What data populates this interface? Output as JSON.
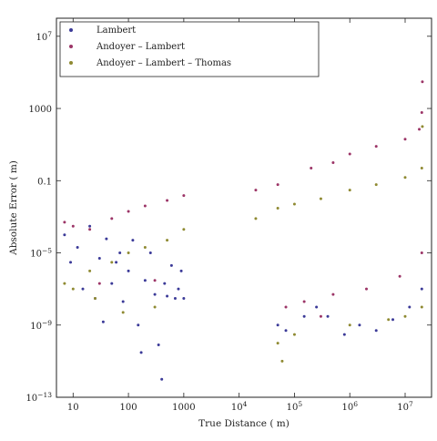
{
  "chart_data": {
    "type": "scatter",
    "title": "",
    "xlabel": "True Distance ( m)",
    "ylabel": "Absolute Error ( m)",
    "x_scale": "log",
    "y_scale": "log",
    "xlim": [
      5,
      30000000
    ],
    "ylim": [
      1e-13,
      100000000.0
    ],
    "grid": false,
    "legend_position": "top-left",
    "x_ticks": [
      {
        "value": 10,
        "label": "10"
      },
      {
        "value": 100,
        "label": "100"
      },
      {
        "value": 1000,
        "label": "1000"
      },
      {
        "value": 10000,
        "label": "10",
        "exp": "4"
      },
      {
        "value": 100000,
        "label": "10",
        "exp": "5"
      },
      {
        "value": 1000000,
        "label": "10",
        "exp": "6"
      },
      {
        "value": 10000000,
        "label": "10",
        "exp": "7"
      }
    ],
    "y_ticks": [
      {
        "value": 1e-13,
        "label": "10",
        "exp": "−13"
      },
      {
        "value": 1e-09,
        "label": "10",
        "exp": "−9"
      },
      {
        "value": 1e-05,
        "label": "10",
        "exp": "−5"
      },
      {
        "value": 0.1,
        "label": "0.1"
      },
      {
        "value": 1000,
        "label": "1000"
      },
      {
        "value": 10000000.0,
        "label": "10",
        "exp": "7"
      }
    ],
    "series": [
      {
        "name": "Lambert",
        "color": "#3b3a98",
        "points": [
          [
            7,
            0.0001
          ],
          [
            9,
            3e-06
          ],
          [
            12,
            2e-05
          ],
          [
            15,
            1e-07
          ],
          [
            20,
            0.0003
          ],
          [
            25,
            3e-08
          ],
          [
            30,
            5e-06
          ],
          [
            35,
            1.5e-09
          ],
          [
            40,
            6e-05
          ],
          [
            50,
            2e-07
          ],
          [
            60,
            3e-06
          ],
          [
            70,
            1e-05
          ],
          [
            80,
            2e-08
          ],
          [
            100,
            1e-06
          ],
          [
            120,
            5e-05
          ],
          [
            150,
            1e-09
          ],
          [
            170,
            3e-11
          ],
          [
            200,
            3e-07
          ],
          [
            250,
            1e-05
          ],
          [
            300,
            5e-08
          ],
          [
            350,
            8e-11
          ],
          [
            400,
            1e-12
          ],
          [
            450,
            2e-07
          ],
          [
            500,
            4e-08
          ],
          [
            600,
            2e-06
          ],
          [
            700,
            3e-08
          ],
          [
            800,
            1e-07
          ],
          [
            900,
            1e-06
          ],
          [
            1000,
            3e-08
          ],
          [
            50000,
            1e-09
          ],
          [
            70000,
            5e-10
          ],
          [
            150000,
            3e-09
          ],
          [
            250000,
            1e-08
          ],
          [
            400000,
            3e-09
          ],
          [
            800000,
            3e-10
          ],
          [
            1500000,
            1e-09
          ],
          [
            3000000,
            5e-10
          ],
          [
            6000000,
            2e-09
          ],
          [
            12000000,
            1e-08
          ],
          [
            20000000,
            1e-07
          ]
        ]
      },
      {
        "name": "Andoyer – Lambert",
        "color": "#9c3567",
        "points": [
          [
            7,
            0.0005
          ],
          [
            10,
            0.0003
          ],
          [
            20,
            0.0002
          ],
          [
            50,
            0.0008
          ],
          [
            100,
            0.002
          ],
          [
            200,
            0.004
          ],
          [
            500,
            0.008
          ],
          [
            1000,
            0.015
          ],
          [
            30,
            2e-07
          ],
          [
            300,
            3e-07
          ],
          [
            20000,
            0.03
          ],
          [
            50000,
            0.06
          ],
          [
            200000,
            0.5
          ],
          [
            500000,
            1
          ],
          [
            1000000,
            3
          ],
          [
            3000000,
            8
          ],
          [
            10000000,
            20
          ],
          [
            18000000,
            70
          ],
          [
            20000000,
            600
          ],
          [
            20500000,
            30000
          ],
          [
            150000,
            2e-08
          ],
          [
            500000,
            5e-08
          ],
          [
            2000000,
            1e-07
          ],
          [
            8000000,
            5e-07
          ],
          [
            20000000,
            1e-05
          ],
          [
            70000,
            1e-08
          ],
          [
            300000,
            3e-09
          ]
        ]
      },
      {
        "name": "Andoyer – Lambert – Thomas",
        "color": "#8f8a32",
        "points": [
          [
            7,
            2e-07
          ],
          [
            10,
            1e-07
          ],
          [
            20,
            1e-06
          ],
          [
            50,
            3e-06
          ],
          [
            100,
            1e-05
          ],
          [
            200,
            2e-05
          ],
          [
            500,
            5e-05
          ],
          [
            1000,
            0.0002
          ],
          [
            25,
            3e-08
          ],
          [
            80,
            5e-09
          ],
          [
            300,
            1e-08
          ],
          [
            20000,
            0.0008
          ],
          [
            50000,
            0.003
          ],
          [
            100000,
            0.005
          ],
          [
            300000,
            0.01
          ],
          [
            1000000,
            0.03
          ],
          [
            3000000,
            0.06
          ],
          [
            10000000,
            0.15
          ],
          [
            20000000,
            0.5
          ],
          [
            20500000,
            100
          ],
          [
            50000,
            1e-10
          ],
          [
            100000,
            3e-10
          ],
          [
            1000000,
            1e-09
          ],
          [
            5000000,
            2e-09
          ],
          [
            10000000,
            3e-09
          ],
          [
            20000000,
            1e-08
          ],
          [
            60000,
            1e-11
          ]
        ]
      }
    ]
  }
}
